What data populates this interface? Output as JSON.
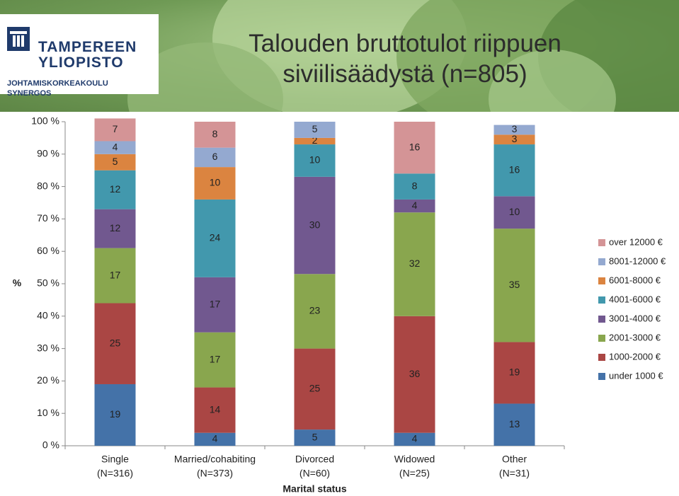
{
  "title": "Talouden bruttotulot riippuen siviilisäädystä (n=805)",
  "logo": {
    "line1": "TAMPEREEN",
    "line2": "YLIOPISTO",
    "line3": "JOHTAMISKORKEAKOULU",
    "line4": "SYNERGOS"
  },
  "chart_data": {
    "type": "bar",
    "stacked": true,
    "normalized": true,
    "ylabel": "%",
    "xlabel": "Marital status",
    "ylim": [
      0,
      100
    ],
    "yticks": [
      "0 %",
      "10 %",
      "20 %",
      "30 %",
      "40 %",
      "50 %",
      "60 %",
      "70 %",
      "80 %",
      "90 %",
      "100 %"
    ],
    "categories": [
      [
        "Single",
        "(N=316)"
      ],
      [
        "Married/cohabiting",
        "(N=373)"
      ],
      [
        "Divorced",
        "(N=60)"
      ],
      [
        "Widowed",
        "(N=25)"
      ],
      [
        "Other",
        "(N=31)"
      ]
    ],
    "legend_position": "right",
    "series": [
      {
        "name": "under 1000 €",
        "color": "#4472a8",
        "values": [
          19,
          4,
          5,
          4,
          13
        ]
      },
      {
        "name": "1000-2000 €",
        "color": "#aa4644",
        "values": [
          25,
          14,
          25,
          36,
          19
        ]
      },
      {
        "name": "2001-3000 €",
        "color": "#89a64e",
        "values": [
          17,
          17,
          23,
          32,
          35
        ]
      },
      {
        "name": "3001-4000 €",
        "color": "#71588f",
        "values": [
          12,
          17,
          30,
          4,
          10
        ]
      },
      {
        "name": "4001-6000 €",
        "color": "#4298ad",
        "values": [
          12,
          24,
          10,
          8,
          16
        ]
      },
      {
        "name": "6001-8000 €",
        "color": "#db8440",
        "values": [
          5,
          10,
          2,
          0,
          3
        ]
      },
      {
        "name": "8001-12000 €",
        "color": "#94a9d0",
        "values": [
          4,
          6,
          5,
          0,
          3
        ]
      },
      {
        "name": "over 12000 €",
        "color": "#d49496",
        "values": [
          7,
          8,
          0,
          16,
          0
        ]
      }
    ]
  }
}
